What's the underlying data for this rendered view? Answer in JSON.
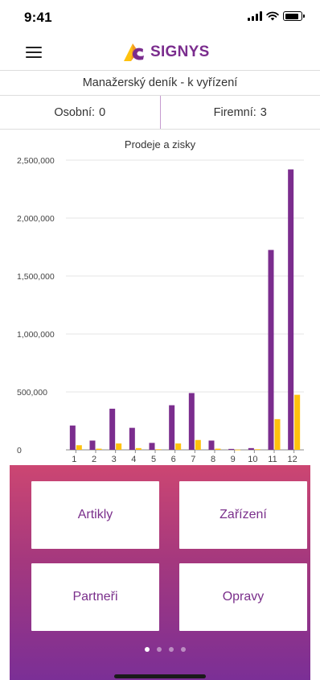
{
  "status_bar": {
    "time": "9:41",
    "battery_level": 0.85
  },
  "header": {
    "logo_text": "SIGNYS",
    "menu_icon": "hamburger-icon",
    "brand_color": "#7b2d8e"
  },
  "page_title": "Manažerský deník - k vyřízení",
  "counters": {
    "personal_label": "Osobní:",
    "personal_value": "0",
    "company_label": "Firemní:",
    "company_value": "3"
  },
  "chart_data": {
    "type": "bar",
    "title": "Prodeje a zisky",
    "xlabel": "",
    "ylabel": "",
    "categories": [
      "1",
      "2",
      "3",
      "4",
      "5",
      "6",
      "7",
      "8",
      "9",
      "10",
      "11",
      "12"
    ],
    "series": [
      {
        "color": "#7b2d8e",
        "values": [
          210000,
          80000,
          355000,
          190000,
          60000,
          385000,
          490000,
          80000,
          8000,
          15000,
          1725000,
          2420000
        ]
      },
      {
        "color": "#ffc20e",
        "values": [
          40000,
          10000,
          55000,
          15000,
          5000,
          55000,
          85000,
          10000,
          2000,
          5000,
          265000,
          475000
        ]
      }
    ],
    "ylim": [
      0,
      2500000
    ],
    "yticks": [
      0,
      500000,
      1000000,
      1500000,
      2000000,
      2500000
    ],
    "ytick_labels": [
      "0",
      "500,000",
      "1,000,000",
      "1,500,000",
      "2,000,000",
      "2,500,000"
    ],
    "grid": true,
    "legend": "none"
  },
  "tiles": {
    "artikly": "Artikly",
    "zarizeni": "Zařízení",
    "partneri": "Partneři",
    "opravy": "Opravy"
  },
  "pager": {
    "count": 4,
    "active": 0
  },
  "panel_gradient": [
    "#cc4672",
    "#7b2f96"
  ]
}
